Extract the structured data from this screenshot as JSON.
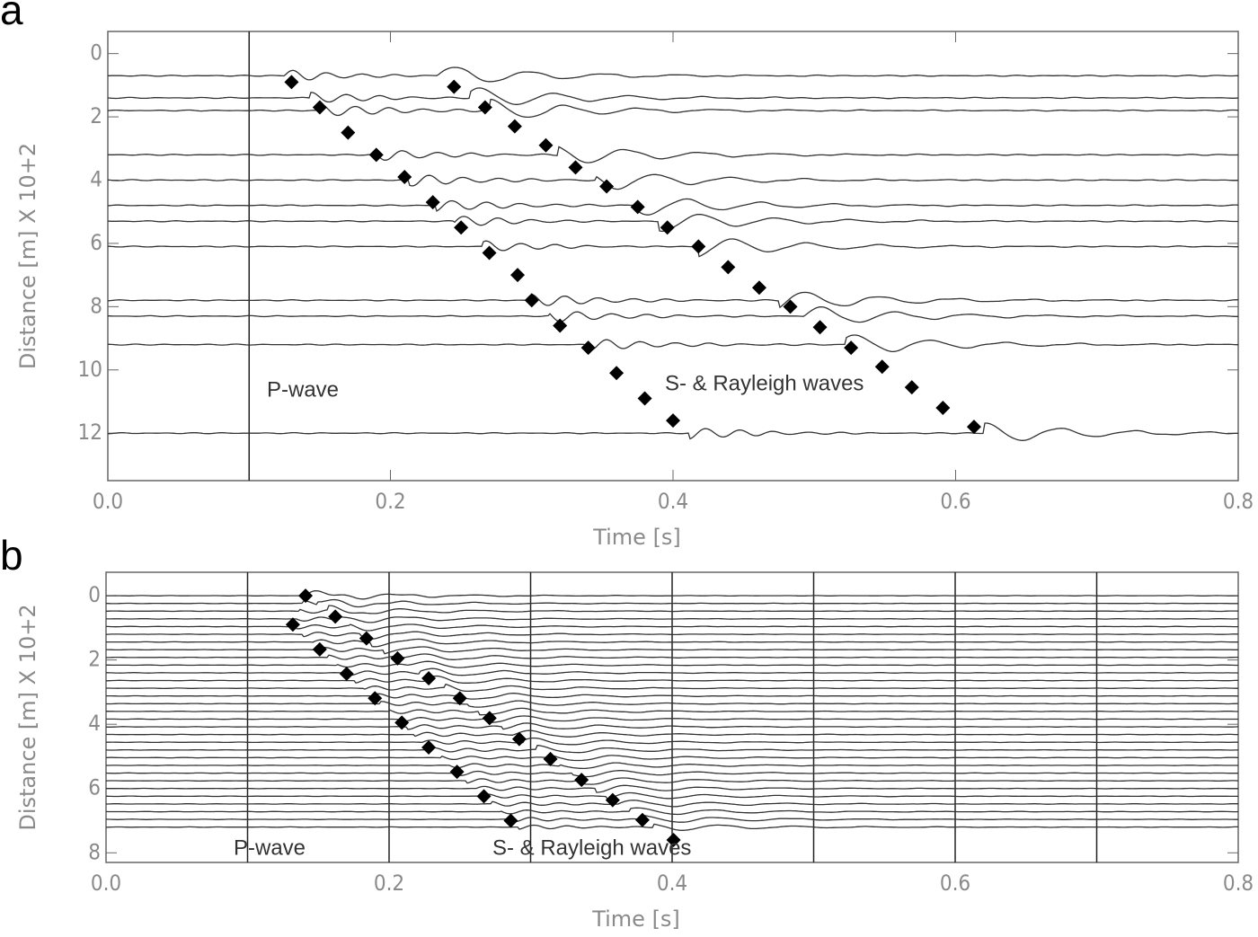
{
  "chart_data": [
    {
      "type": "seismogram",
      "panel_label": "a",
      "xlabel": "Time [s]",
      "ylabel": "Distance [m] X 10+2",
      "xlim": [
        0,
        0.8
      ],
      "ylim": [
        13.5,
        -0.7
      ],
      "xticks": [
        {
          "value": 0,
          "label": "0.0"
        },
        0.2,
        0.4,
        0.6,
        0.8
      ],
      "yticks": [
        0,
        2,
        4,
        6,
        8,
        10,
        12
      ],
      "vlines": [
        0.1
      ],
      "traces": [
        0.7,
        1.4,
        1.8,
        3.2,
        4.0,
        4.8,
        5.3,
        6.1,
        7.8,
        8.3,
        9.2,
        12.0
      ],
      "series": [
        {
          "color": "#000000",
          "x": [
            0.13,
            0.15,
            0.17,
            0.19,
            0.21,
            0.23,
            0.25,
            0.27,
            0.29,
            0.3,
            0.32,
            0.34,
            0.36,
            0.38,
            0.4
          ],
          "values": [
            0.9,
            1.7,
            2.5,
            3.2,
            3.9,
            4.7,
            5.5,
            6.3,
            7.0,
            7.8,
            8.6,
            9.3,
            10.1,
            10.9,
            11.6
          ]
        },
        {
          "color": "#000000",
          "x": [
            0.245,
            0.267,
            0.288,
            0.31,
            0.331,
            0.353,
            0.375,
            0.396,
            0.418,
            0.439,
            0.461,
            0.483,
            0.504,
            0.526,
            0.548,
            0.569,
            0.591,
            0.613
          ],
          "values": [
            1.05,
            1.7,
            2.3,
            2.9,
            3.6,
            4.2,
            4.85,
            5.5,
            6.1,
            6.75,
            7.4,
            8.0,
            8.65,
            9.3,
            9.9,
            10.55,
            11.2,
            11.8
          ]
        }
      ],
      "annotations": [
        "P-wave",
        "S- & Rayleigh waves"
      ]
    },
    {
      "type": "seismogram",
      "panel_label": "b",
      "xlabel": "Time [s]",
      "ylabel": "Distance [m] X 10+2",
      "xlim": [
        0,
        0.8
      ],
      "ylim": [
        8.3,
        -0.73
      ],
      "xticks": [
        {
          "value": 0,
          "label": "0.0"
        },
        0.2,
        0.4,
        0.6,
        0.8
      ],
      "yticks": [
        0,
        2,
        4,
        6,
        8
      ],
      "vlines": [
        0.1,
        0.2,
        0.3,
        0.4,
        0.5,
        0.6,
        0.7
      ],
      "traces": [
        0,
        0.24,
        0.48,
        0.72,
        0.96,
        1.2,
        1.44,
        1.68,
        1.92,
        2.16,
        2.4,
        2.64,
        2.88,
        3.12,
        3.36,
        3.6,
        3.84,
        4.08,
        4.32,
        4.56,
        4.8,
        5.04,
        5.28,
        5.52,
        5.76,
        6.0,
        6.24,
        6.48,
        6.72,
        6.96,
        7.2
      ],
      "series": [
        {
          "color": "#000000",
          "x": [
            0.141,
            0.132,
            0.151,
            0.17,
            0.19,
            0.209,
            0.228,
            0.248,
            0.267,
            0.286
          ],
          "values": [
            0,
            0.9,
            1.67,
            2.43,
            3.19,
            3.95,
            4.72,
            5.48,
            6.24,
            7.0
          ]
        },
        {
          "color": "#000000",
          "x": [
            0.162,
            0.184,
            0.206,
            0.228,
            0.25,
            0.271,
            0.292,
            0.314,
            0.336,
            0.358,
            0.379,
            0.401
          ],
          "values": [
            0.65,
            1.33,
            1.95,
            2.57,
            3.19,
            3.81,
            4.46,
            5.08,
            5.73,
            6.36,
            6.98,
            7.6
          ]
        }
      ],
      "annotations": [
        "P-wave",
        "S- & Rayleigh waves"
      ]
    }
  ]
}
